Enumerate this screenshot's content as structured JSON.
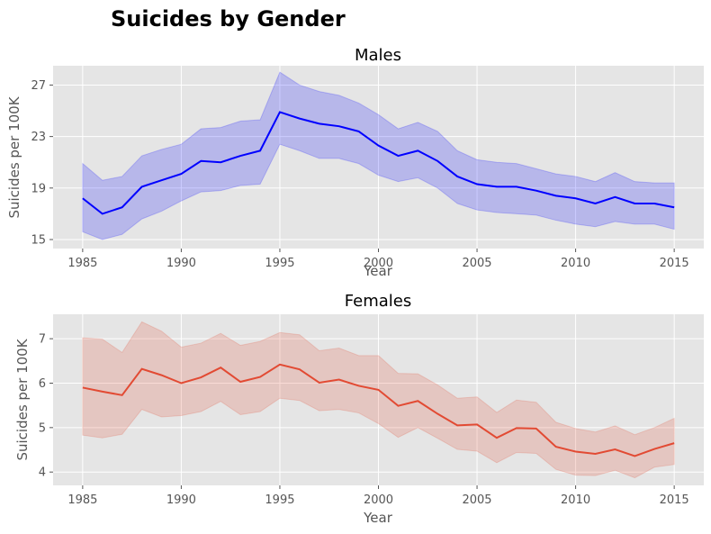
{
  "figure": {
    "suptitle": "Suicides by Gender"
  },
  "chart_data": [
    {
      "type": "line",
      "title": "Males",
      "xlabel": "Year",
      "ylabel": "Suicides per 100K",
      "xlim": [
        1983.5,
        2016.5
      ],
      "ylim": [
        14.3,
        28.5
      ],
      "xticks": [
        1985,
        1990,
        1995,
        2000,
        2005,
        2010,
        2015
      ],
      "yticks": [
        15,
        19,
        23,
        27
      ],
      "grid": true,
      "line_color": "#0000ff",
      "band_color": "#0000ff",
      "band_opacity": 0.2,
      "x": [
        1985,
        1986,
        1987,
        1988,
        1989,
        1990,
        1991,
        1992,
        1993,
        1994,
        1995,
        1996,
        1997,
        1998,
        1999,
        2000,
        2001,
        2002,
        2003,
        2004,
        2005,
        2006,
        2007,
        2008,
        2009,
        2010,
        2011,
        2012,
        2013,
        2014,
        2015
      ],
      "values": [
        18.2,
        17.0,
        17.5,
        19.1,
        19.6,
        20.1,
        21.1,
        21.0,
        21.5,
        21.9,
        24.9,
        24.4,
        24.0,
        23.8,
        23.4,
        22.3,
        21.5,
        21.9,
        21.1,
        19.9,
        19.3,
        19.1,
        19.1,
        18.8,
        18.4,
        18.2,
        17.8,
        18.3,
        17.8,
        17.8,
        17.5
      ],
      "lower": [
        15.6,
        15.0,
        15.4,
        16.6,
        17.2,
        18.0,
        18.7,
        18.8,
        19.2,
        19.3,
        22.4,
        21.9,
        21.3,
        21.3,
        20.9,
        20.0,
        19.5,
        19.8,
        19.0,
        17.8,
        17.3,
        17.1,
        17.0,
        16.9,
        16.5,
        16.2,
        16.0,
        16.4,
        16.2,
        16.2,
        15.8
      ],
      "upper": [
        20.9,
        19.6,
        19.9,
        21.5,
        22.0,
        22.4,
        23.6,
        23.7,
        24.2,
        24.3,
        28.0,
        27.0,
        26.5,
        26.2,
        25.6,
        24.7,
        23.6,
        24.1,
        23.4,
        21.9,
        21.2,
        21.0,
        20.9,
        20.5,
        20.1,
        19.9,
        19.5,
        20.2,
        19.5,
        19.4,
        19.4
      ]
    },
    {
      "type": "line",
      "title": "Females",
      "xlabel": "Year",
      "ylabel": "Suicides per 100K",
      "xlim": [
        1983.5,
        2016.5
      ],
      "ylim": [
        3.7,
        7.55
      ],
      "xticks": [
        1985,
        1990,
        1995,
        2000,
        2005,
        2010,
        2015
      ],
      "yticks": [
        4,
        5,
        6,
        7
      ],
      "grid": true,
      "line_color": "#e24a33",
      "band_color": "#e24a33",
      "band_opacity": 0.2,
      "x": [
        1985,
        1986,
        1987,
        1988,
        1989,
        1990,
        1991,
        1992,
        1993,
        1994,
        1995,
        1996,
        1997,
        1998,
        1999,
        2000,
        2001,
        2002,
        2003,
        2004,
        2005,
        2006,
        2007,
        2008,
        2009,
        2010,
        2011,
        2012,
        2013,
        2014,
        2015
      ],
      "values": [
        5.9,
        5.81,
        5.73,
        6.32,
        6.18,
        6.0,
        6.13,
        6.35,
        6.03,
        6.14,
        6.42,
        6.31,
        6.01,
        6.08,
        5.94,
        5.85,
        5.49,
        5.6,
        5.31,
        5.05,
        5.07,
        4.77,
        4.99,
        4.98,
        4.57,
        4.46,
        4.41,
        4.51,
        4.36,
        4.52,
        4.65
      ],
      "lower": [
        4.83,
        4.77,
        4.85,
        5.41,
        5.24,
        5.27,
        5.36,
        5.59,
        5.29,
        5.36,
        5.66,
        5.61,
        5.38,
        5.41,
        5.33,
        5.09,
        4.78,
        5.0,
        4.76,
        4.51,
        4.47,
        4.21,
        4.44,
        4.42,
        4.06,
        3.93,
        3.92,
        4.04,
        3.87,
        4.11,
        4.17
      ],
      "upper": [
        7.02,
        6.99,
        6.69,
        7.38,
        7.17,
        6.81,
        6.9,
        7.12,
        6.85,
        6.94,
        7.14,
        7.09,
        6.73,
        6.79,
        6.62,
        6.62,
        6.22,
        6.21,
        5.96,
        5.66,
        5.69,
        5.34,
        5.62,
        5.57,
        5.12,
        4.98,
        4.9,
        5.04,
        4.84,
        5.0,
        5.21
      ]
    }
  ]
}
